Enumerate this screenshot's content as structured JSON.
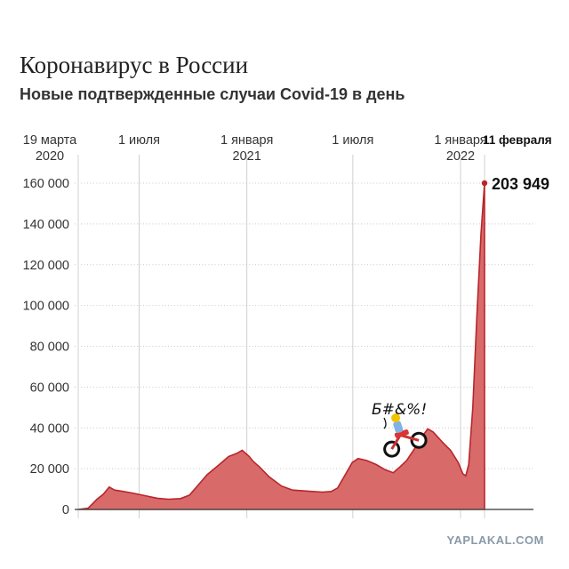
{
  "chart_data": {
    "type": "area",
    "title": "Коронавирус в России",
    "subtitle": "Новые подтвержденные случаи Covid-19 в день",
    "x_ticks": [
      {
        "date": "2020-03-19",
        "label": "19 марта",
        "label2": "2020"
      },
      {
        "date": "2020-07-01",
        "label": "1 июля",
        "label2": ""
      },
      {
        "date": "2021-01-01",
        "label": "1 января",
        "label2": "2021"
      },
      {
        "date": "2021-07-01",
        "label": "1 июля",
        "label2": ""
      },
      {
        "date": "2022-01-01",
        "label": "1 января",
        "label2": "2022"
      },
      {
        "date": "2022-02-11",
        "label": "11 февраля",
        "label2": ""
      }
    ],
    "y_ticks": [
      0,
      20000,
      40000,
      60000,
      80000,
      100000,
      120000,
      140000,
      160000
    ],
    "y_tick_labels": [
      "0",
      "20 000",
      "40 000",
      "60 000",
      "80 000",
      "100 000",
      "120 000",
      "140 000",
      "160 000"
    ],
    "ylim": [
      0,
      160000
    ],
    "series": [
      {
        "name": "",
        "color": "#b8262b",
        "fill": "#d86a6a",
        "points": [
          [
            "2020-03-19",
            0
          ],
          [
            "2020-04-05",
            600
          ],
          [
            "2020-04-20",
            5000
          ],
          [
            "2020-05-01",
            7500
          ],
          [
            "2020-05-11",
            11000
          ],
          [
            "2020-05-20",
            9500
          ],
          [
            "2020-06-01",
            9000
          ],
          [
            "2020-06-20",
            8000
          ],
          [
            "2020-07-10",
            6800
          ],
          [
            "2020-08-01",
            5500
          ],
          [
            "2020-08-20",
            5000
          ],
          [
            "2020-09-10",
            5300
          ],
          [
            "2020-09-25",
            7000
          ],
          [
            "2020-10-10",
            12000
          ],
          [
            "2020-10-25",
            17000
          ],
          [
            "2020-11-15",
            22000
          ],
          [
            "2020-12-01",
            26000
          ],
          [
            "2020-12-15",
            27500
          ],
          [
            "2020-12-24",
            29000
          ],
          [
            "2021-01-05",
            26000
          ],
          [
            "2021-01-12",
            23500
          ],
          [
            "2021-01-22",
            21000
          ],
          [
            "2021-02-08",
            16000
          ],
          [
            "2021-03-01",
            11500
          ],
          [
            "2021-03-20",
            9500
          ],
          [
            "2021-04-15",
            9000
          ],
          [
            "2021-05-10",
            8500
          ],
          [
            "2021-05-25",
            8800
          ],
          [
            "2021-06-05",
            10500
          ],
          [
            "2021-06-18",
            17000
          ],
          [
            "2021-06-30",
            23000
          ],
          [
            "2021-07-10",
            25000
          ],
          [
            "2021-07-25",
            24000
          ],
          [
            "2021-08-10",
            22000
          ],
          [
            "2021-08-25",
            19500
          ],
          [
            "2021-09-08",
            18000
          ],
          [
            "2021-09-20",
            21000
          ],
          [
            "2021-10-01",
            24000
          ],
          [
            "2021-10-15",
            30000
          ],
          [
            "2021-10-28",
            36000
          ],
          [
            "2021-11-06",
            39500
          ],
          [
            "2021-11-15",
            38000
          ],
          [
            "2021-12-01",
            33000
          ],
          [
            "2021-12-15",
            29000
          ],
          [
            "2021-12-28",
            23000
          ],
          [
            "2022-01-05",
            17500
          ],
          [
            "2022-01-10",
            16500
          ],
          [
            "2022-01-15",
            22000
          ],
          [
            "2022-01-22",
            50000
          ],
          [
            "2022-01-29",
            95000
          ],
          [
            "2022-02-05",
            135000
          ],
          [
            "2022-02-11",
            203949
          ]
        ]
      }
    ],
    "end_label": "203 949",
    "end_date_label": "11 февраля",
    "annotation": "Б#&%!",
    "watermark": "YAPLAKAL.COM",
    "grid": true
  }
}
